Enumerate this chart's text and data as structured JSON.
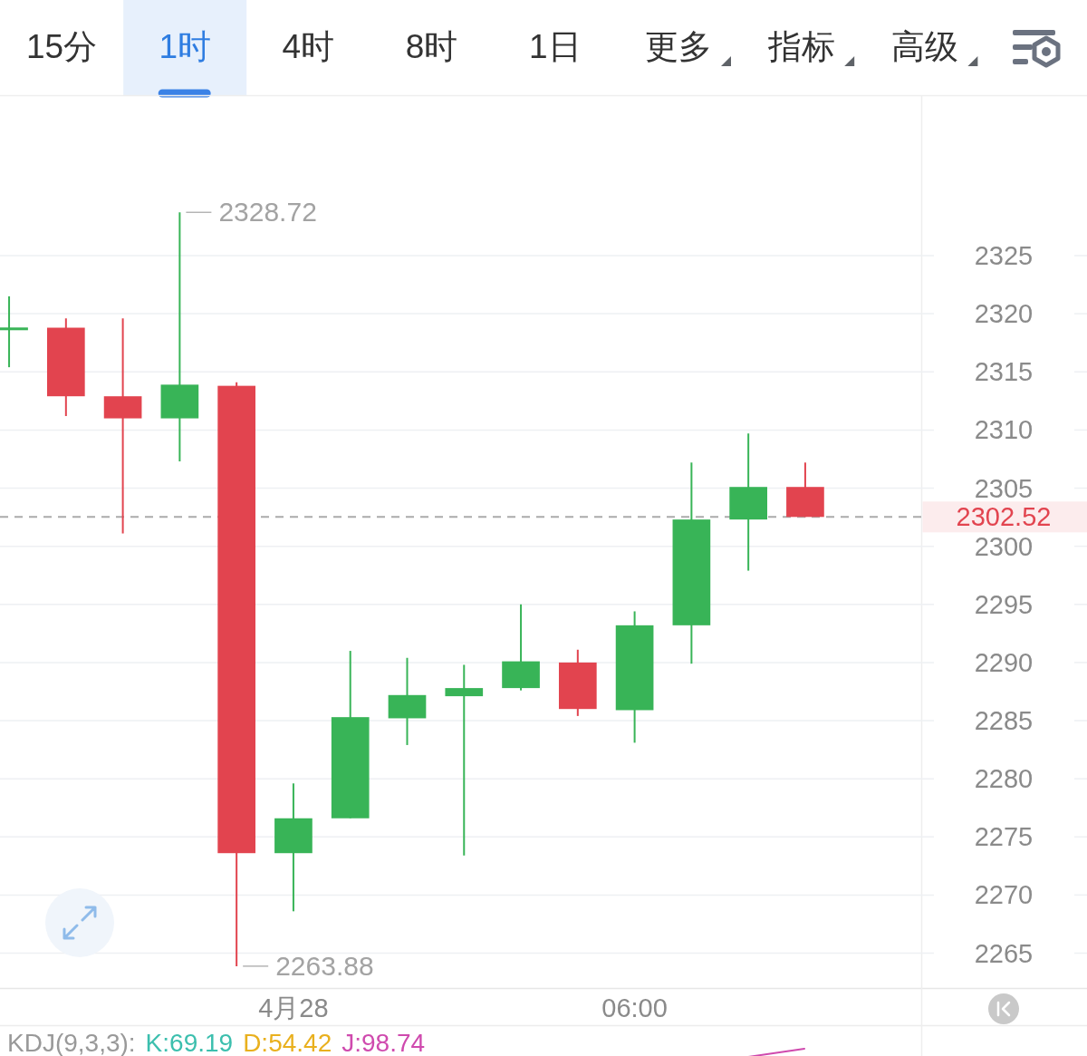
{
  "chart_data": {
    "type": "candlestick",
    "categories": [
      null,
      null,
      null,
      null,
      null,
      "4月28",
      null,
      null,
      null,
      null,
      null,
      "06:00",
      null,
      null,
      null
    ],
    "ohlc": [
      [
        2318.7,
        2321.5,
        2315.4,
        2318.7
      ],
      [
        2318.8,
        2319.6,
        2311.2,
        2312.9
      ],
      [
        2312.9,
        2319.6,
        2301.1,
        2311.0
      ],
      [
        2311.0,
        2328.72,
        2307.3,
        2313.9
      ],
      [
        2313.8,
        2314.1,
        2263.88,
        2273.6
      ],
      [
        2273.6,
        2279.6,
        2268.6,
        2276.6
      ],
      [
        2276.6,
        2291.0,
        2276.6,
        2285.3
      ],
      [
        2285.2,
        2290.4,
        2282.9,
        2287.2
      ],
      [
        2287.1,
        2289.8,
        2273.4,
        2287.8
      ],
      [
        2287.8,
        2295.0,
        2287.6,
        2290.1
      ],
      [
        2290.0,
        2291.1,
        2285.4,
        2286.0
      ],
      [
        2285.9,
        2294.4,
        2283.1,
        2293.2
      ],
      [
        2293.2,
        2307.2,
        2289.9,
        2302.3
      ],
      [
        2302.3,
        2309.7,
        2297.9,
        2305.1
      ],
      [
        2305.1,
        2307.2,
        2302.52,
        2302.52
      ]
    ],
    "colors": [
      "#38b457",
      "#e2444f",
      "#e2444f",
      "#38b457",
      "#e2444f",
      "#38b457",
      "#38b457",
      "#38b457",
      "#38b457",
      "#38b457",
      "#e2444f",
      "#38b457",
      "#38b457",
      "#38b457",
      "#e2444f"
    ],
    "ylim": [
      2262.0,
      2338.8
    ],
    "yticks": [
      2265,
      2270,
      2275,
      2280,
      2285,
      2290,
      2295,
      2300,
      2305,
      2310,
      2315,
      2320,
      2325
    ],
    "grid": "y",
    "ref_lines": [
      {
        "axis": "y",
        "value": 2302.52,
        "label": "2302.52",
        "color": "#aaaaaa",
        "line_style": "dashed"
      }
    ],
    "annotations": [
      "15分",
      "1时",
      "4时",
      "8时",
      "1日",
      "更多",
      "指标",
      "高级",
      "2328.72",
      "2263.88",
      "KDJ(9,3,3):",
      "K:69.19",
      "D:54.42",
      "J:98.74"
    ]
  }
}
